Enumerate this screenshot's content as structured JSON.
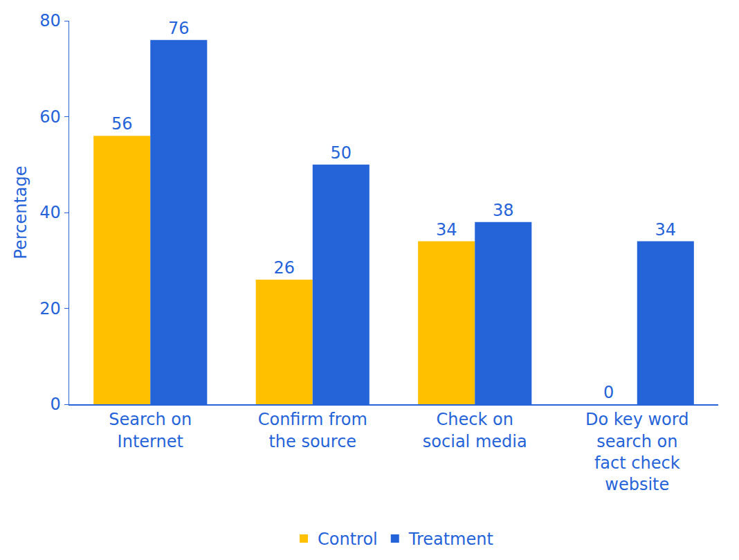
{
  "chart_data": {
    "type": "bar",
    "categories": [
      "Search on Internet",
      "Confirm from the source",
      "Check on social media",
      "Do key word search on fact check website"
    ],
    "series": [
      {
        "name": "Control",
        "color": "#ffc000",
        "values": [
          56,
          26,
          34,
          0
        ]
      },
      {
        "name": "Treatment",
        "color": "#2563d9",
        "values": [
          76,
          50,
          38,
          34
        ]
      }
    ],
    "y_label": "Percentage",
    "ylim": [
      0,
      80
    ],
    "yticks": [
      0,
      20,
      40,
      60,
      80
    ],
    "grid": false,
    "legend": "bottom",
    "data_labels": true
  }
}
